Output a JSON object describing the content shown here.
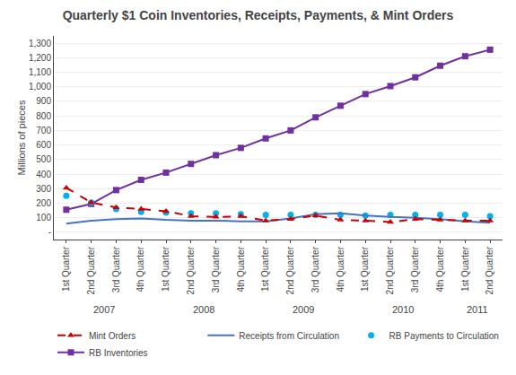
{
  "chart_data": {
    "type": "line",
    "title": "Quarterly $1 Coin Inventories, Receipts, Payments, & Mint Orders",
    "y_label": "Millions of pieces",
    "categories": [
      "1st Quarter",
      "2nd Quarter",
      "3rd Quarter",
      "4th Quarter",
      "1st Quarter",
      "2nd Quarter",
      "3rd Quarter",
      "4th Quarter",
      "1st Quarter",
      "2nd Quarter",
      "3rd Quarter",
      "4th Quarter",
      "1st Quarter",
      "2nd Quarter",
      "3rd Quarter",
      "4th Quarter",
      "1st Quarter",
      "2nd Quarter"
    ],
    "annotations": [
      {
        "text": "2007",
        "x": 1.5
      },
      {
        "text": "2008",
        "x": 5.5
      },
      {
        "text": "2009",
        "x": 9.5
      },
      {
        "text": "2010",
        "x": 13.5
      },
      {
        "text": "2011",
        "x": 16.5
      }
    ],
    "series": [
      {
        "name": "RB Inventories",
        "color": "#7030A0",
        "marker": "square",
        "line_style": "solid",
        "values": [
          155,
          195,
          290,
          360,
          410,
          470,
          530,
          580,
          645,
          700,
          790,
          870,
          950,
          1005,
          1065,
          1145,
          1210,
          1255
        ]
      },
      {
        "name": "RB Payments to Circulation",
        "color": "#00B0F0",
        "marker": "circle",
        "line_style": "none",
        "values": [
          250,
          205,
          160,
          140,
          135,
          130,
          130,
          125,
          120,
          120,
          120,
          120,
          115,
          120,
          120,
          120,
          120,
          110
        ]
      },
      {
        "name": "Receipts from Circulation",
        "color": "#4472C4",
        "marker": "none",
        "line_style": "solid",
        "values": [
          60,
          80,
          90,
          95,
          85,
          80,
          80,
          75,
          75,
          95,
          125,
          130,
          115,
          105,
          100,
          90,
          75,
          65
        ]
      },
      {
        "name": "Mint Orders",
        "color": "#CC0000",
        "marker": "triangle",
        "line_style": "dashed",
        "values": [
          305,
          205,
          170,
          160,
          145,
          110,
          105,
          110,
          80,
          90,
          115,
          85,
          80,
          70,
          90,
          85,
          80,
          80
        ]
      }
    ],
    "ylim": [
      -50,
      1350
    ],
    "yticks": [
      {
        "value": 0,
        "label": "-"
      },
      100,
      200,
      300,
      400,
      500,
      600,
      700,
      800,
      900,
      {
        "value": 1000,
        "label": "1,000"
      },
      {
        "value": 1100,
        "label": "1,100"
      },
      {
        "value": 1200,
        "label": "1,200"
      },
      {
        "value": 1300,
        "label": "1,300"
      }
    ],
    "grid": true,
    "legend": "bottom"
  }
}
